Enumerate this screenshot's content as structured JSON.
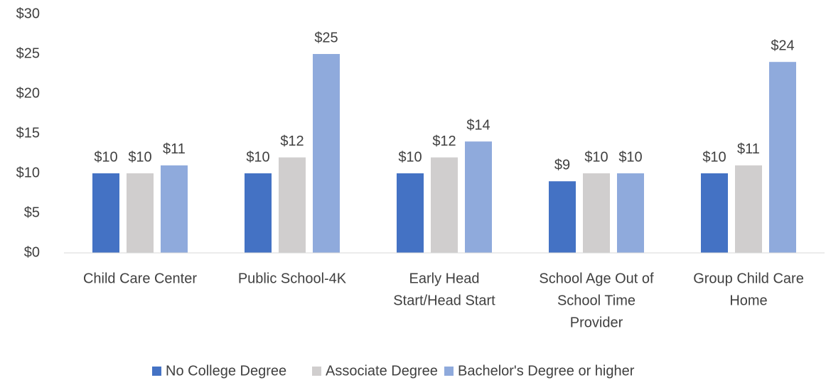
{
  "chart_data": {
    "type": "bar",
    "categories": [
      [
        "Child Care Center"
      ],
      [
        "Public School-4K"
      ],
      [
        "Early Head",
        "Start/Head Start"
      ],
      [
        "School Age Out of",
        "School Time",
        "Provider"
      ],
      [
        "Group Child Care",
        "Home"
      ]
    ],
    "series": [
      {
        "name": "No College Degree",
        "color": "#4472c4",
        "values": [
          10,
          10,
          10,
          9,
          10
        ],
        "value_labels": [
          "$10",
          "$10",
          "$10",
          "$9",
          "$10"
        ]
      },
      {
        "name": "Associate Degree",
        "color": "#d0cece",
        "values": [
          10,
          12,
          12,
          10,
          11
        ],
        "value_labels": [
          "$10",
          "$12",
          "$12",
          "$10",
          "$11"
        ]
      },
      {
        "name": "Bachelor's Degree or higher",
        "color": "#8faadc",
        "values": [
          11,
          25,
          14,
          10,
          24
        ],
        "value_labels": [
          "$11",
          "$25",
          "$14",
          "$10",
          "$24"
        ]
      }
    ],
    "ylim": [
      0,
      30
    ],
    "yticks": [
      {
        "value": 0,
        "label": "$0"
      },
      {
        "value": 5,
        "label": "$5"
      },
      {
        "value": 10,
        "label": "$10"
      },
      {
        "value": 15,
        "label": "$15"
      },
      {
        "value": 20,
        "label": "$20"
      },
      {
        "value": 25,
        "label": "$25"
      },
      {
        "value": 30,
        "label": "$30"
      }
    ],
    "grid": false,
    "legend": "bottom"
  }
}
